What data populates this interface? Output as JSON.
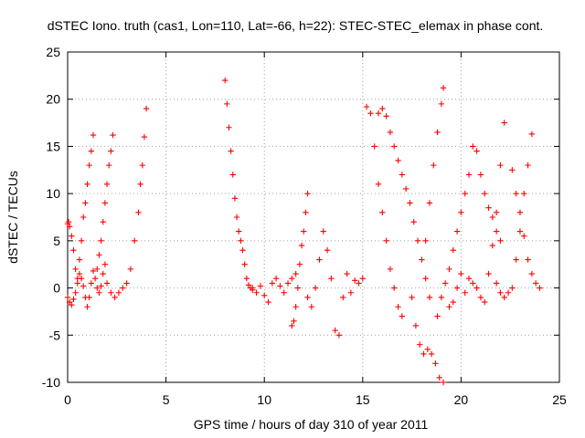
{
  "chart_data": {
    "type": "scatter",
    "title": "dSTEC Iono. truth (cas1, Lon=110, Lat=-66, h=22): STEC-STEC_elemax in phase cont.",
    "xlabel": "GPS time / hours of day 310 of year 2011",
    "ylabel": "dSTEC  / TECUs",
    "xlim": [
      0,
      25
    ],
    "ylim": [
      -10,
      25
    ],
    "xticks": [
      "0",
      "5",
      "10",
      "15",
      "20",
      "25"
    ],
    "yticks": [
      "-10",
      "-5",
      "0",
      "5",
      "10",
      "15",
      "20",
      "25"
    ],
    "grid": true,
    "marker": "+",
    "color": "#ff0000",
    "series": [
      {
        "x": [
          0.0,
          0.05,
          0.1,
          0.2,
          0.3,
          0.4,
          0.5,
          0.6,
          0.7,
          0.8,
          0.9,
          1.0,
          1.1,
          1.2,
          1.3
        ],
        "y": [
          6.8,
          7.0,
          6.5,
          5.5,
          4.0,
          2.0,
          1.0,
          3.0,
          5.0,
          7.5,
          9.0,
          11.0,
          13.0,
          14.5,
          16.2
        ]
      },
      {
        "x": [
          0.0,
          0.1,
          0.2,
          0.3,
          0.4,
          0.5,
          0.6,
          0.7,
          0.8,
          0.9,
          1.0,
          1.1,
          1.2,
          1.3,
          1.4,
          1.5,
          1.6,
          1.7,
          1.8,
          1.9
        ],
        "y": [
          -1.0,
          -1.5,
          -1.8,
          -1.2,
          -0.5,
          0.5,
          1.5,
          1.0,
          0.2,
          -1.0,
          -2.0,
          -1.0,
          0.5,
          1.8,
          1.0,
          0.0,
          -0.5,
          0.2,
          1.5,
          2.5
        ]
      },
      {
        "x": [
          1.5,
          1.6,
          1.7,
          1.8,
          1.9,
          2.0,
          2.1,
          2.2,
          2.3
        ],
        "y": [
          2.0,
          3.5,
          5.0,
          7.0,
          9.0,
          11.0,
          13.0,
          14.5,
          16.2
        ]
      },
      {
        "x": [
          2.0,
          2.2,
          2.4,
          2.6,
          2.8,
          3.0,
          3.2,
          3.4,
          3.6,
          3.7,
          3.8,
          3.9,
          4.0
        ],
        "y": [
          0.5,
          -0.5,
          -1.0,
          -0.5,
          0.0,
          0.5,
          2.0,
          5.0,
          8.0,
          11.0,
          13.0,
          16.0,
          19.0
        ]
      },
      {
        "x": [
          8.0,
          8.1,
          8.2,
          8.3,
          8.4,
          8.5,
          8.6,
          8.7,
          8.8,
          8.9,
          9.0,
          9.1,
          9.2,
          9.3,
          9.4
        ],
        "y": [
          22.0,
          19.5,
          17.0,
          14.5,
          12.0,
          9.5,
          7.5,
          6.0,
          5.0,
          4.0,
          2.5,
          1.0,
          0.3,
          0.0,
          -0.2
        ]
      },
      {
        "x": [
          9.4,
          9.6,
          9.8,
          10.0,
          10.2,
          10.4,
          10.6,
          10.8,
          11.0,
          11.2,
          11.4,
          11.6
        ],
        "y": [
          0.0,
          -0.5,
          0.2,
          -0.8,
          -1.5,
          0.5,
          1.0,
          0.2,
          -0.5,
          0.5,
          1.0,
          1.5
        ]
      },
      {
        "x": [
          11.4,
          11.5,
          11.6,
          11.7,
          11.8,
          11.9,
          12.0,
          12.1,
          12.2
        ],
        "y": [
          -4.0,
          -3.5,
          -2.0,
          0.0,
          2.5,
          4.5,
          6.0,
          8.0,
          10.0
        ]
      },
      {
        "x": [
          12.2,
          12.4,
          12.6,
          12.8,
          13.0,
          13.2,
          13.4,
          13.6,
          13.8,
          14.0,
          14.2,
          14.4,
          14.6,
          14.8,
          15.0
        ],
        "y": [
          -1.0,
          -2.0,
          0.0,
          3.0,
          6.0,
          4.0,
          1.0,
          -4.5,
          -5.0,
          -1.0,
          1.5,
          -0.5,
          0.8,
          0.5,
          1.0
        ]
      },
      {
        "x": [
          15.2,
          15.4,
          15.6,
          15.8,
          16.0,
          16.2,
          16.4,
          16.6,
          16.8,
          17.0
        ],
        "y": [
          19.2,
          18.5,
          15.0,
          11.0,
          8.0,
          5.0,
          2.0,
          0.0,
          -2.0,
          -3.0
        ]
      },
      {
        "x": [
          15.8,
          16.0,
          16.2,
          16.4,
          16.6,
          16.8,
          17.0,
          17.2,
          17.4,
          17.6,
          17.8,
          18.0,
          18.2,
          18.4
        ],
        "y": [
          18.5,
          19.0,
          18.2,
          16.5,
          15.0,
          13.5,
          12.0,
          10.5,
          9.0,
          7.0,
          5.0,
          3.0,
          1.0,
          -1.0
        ]
      },
      {
        "x": [
          17.5,
          17.7,
          17.9,
          18.1,
          18.3,
          18.5,
          18.7,
          18.9,
          19.1
        ],
        "y": [
          -1.0,
          -4.0,
          -6.0,
          -7.0,
          -6.5,
          -7.0,
          -8.0,
          -9.5,
          -10.0
        ]
      },
      {
        "x": [
          18.2,
          18.4,
          18.6,
          18.8,
          19.0,
          19.1
        ],
        "y": [
          5.0,
          9.0,
          13.0,
          16.5,
          19.5,
          21.2
        ]
      },
      {
        "x": [
          18.8,
          19.0,
          19.2,
          19.4,
          19.6,
          19.8,
          20.0,
          20.2,
          20.4,
          20.6,
          20.8,
          21.0,
          21.2,
          21.4,
          21.6,
          21.8,
          22.0
        ],
        "y": [
          -3.0,
          -1.0,
          0.5,
          2.0,
          4.0,
          6.0,
          8.0,
          10.0,
          12.0,
          15.0,
          14.5,
          12.0,
          10.0,
          8.5,
          7.5,
          6.0,
          5.0
        ]
      },
      {
        "x": [
          19.4,
          19.6,
          19.8,
          20.0,
          20.2,
          20.4,
          20.6,
          20.8,
          21.0,
          21.2,
          21.4,
          21.6,
          21.8,
          22.0,
          22.2
        ],
        "y": [
          -2.0,
          -1.5,
          0.0,
          1.5,
          -0.5,
          1.0,
          0.5,
          0.0,
          -1.0,
          -1.5,
          1.5,
          4.5,
          8.0,
          13.0,
          17.5
        ]
      },
      {
        "x": [
          21.8,
          22.0,
          22.2,
          22.4,
          22.6,
          22.8,
          23.0,
          23.2,
          23.4,
          23.6
        ],
        "y": [
          0.5,
          -0.5,
          -1.0,
          -0.5,
          0.0,
          3.0,
          6.0,
          10.0,
          13.0,
          16.3
        ]
      },
      {
        "x": [
          22.6,
          22.8,
          23.0,
          23.2,
          23.4,
          23.6,
          23.8,
          24.0
        ],
        "y": [
          12.5,
          10.0,
          8.0,
          5.5,
          3.0,
          1.5,
          0.5,
          0.0
        ]
      }
    ]
  }
}
